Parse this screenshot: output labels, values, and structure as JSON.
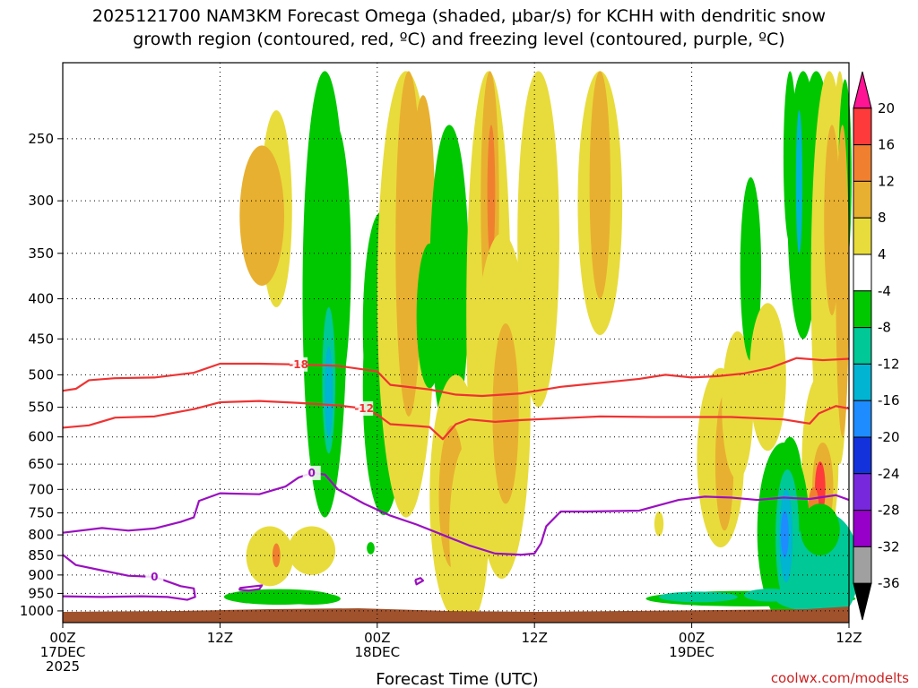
{
  "chart_data": {
    "type": "heatmap",
    "title_line1": "2025121700 NAM3KM Forecast Omega (shaded, μbar/s) for KCHH with dendritic snow",
    "title_line2": "growth region (contoured, red, ºC) and freezing level (contoured, purple, ºC)",
    "xlabel": "Forecast Time (UTC)",
    "credit": "coolwx.com/modelts",
    "x_ticks": [
      {
        "hour": 0,
        "lines": [
          "00Z",
          "17DEC",
          "2025"
        ]
      },
      {
        "hour": 12,
        "lines": [
          "12Z"
        ]
      },
      {
        "hour": 24,
        "lines": [
          "00Z",
          "18DEC"
        ]
      },
      {
        "hour": 36,
        "lines": [
          "12Z"
        ]
      },
      {
        "hour": 48,
        "lines": [
          "00Z",
          "19DEC"
        ]
      },
      {
        "hour": 60,
        "lines": [
          "12Z"
        ]
      }
    ],
    "xlim": [
      0,
      60
    ],
    "y_scale": "log-pressure (hPa), inverted",
    "ylim": [
      1035,
      200
    ],
    "y_ticks": [
      250,
      300,
      350,
      400,
      450,
      500,
      550,
      600,
      650,
      700,
      750,
      800,
      850,
      900,
      950,
      1000
    ],
    "grid": true,
    "colorbar": {
      "labels": [
        "20",
        "16",
        "12",
        "8",
        "4",
        "-4",
        "-8",
        "-12",
        "-16",
        "-20",
        "-24",
        "-28",
        "-32",
        "-36"
      ],
      "colors": [
        "#ff1493",
        "#ff3a3a",
        "#f08030",
        "#e8b030",
        "#e8dc3c",
        "#ffffff",
        "#00c800",
        "#00c896",
        "#00b4d2",
        "#1e8cff",
        "#1432dc",
        "#7828dc",
        "#9600c8",
        "#a0a0a0",
        "#000000"
      ]
    },
    "contours": [
      {
        "label": "-18",
        "color": "#ee3333",
        "points": [
          [
            0,
            524
          ],
          [
            1,
            521
          ],
          [
            2,
            508
          ],
          [
            4,
            505
          ],
          [
            7,
            504
          ],
          [
            10,
            497
          ],
          [
            12,
            484
          ],
          [
            15,
            484
          ],
          [
            18,
            485
          ],
          [
            21,
            487
          ],
          [
            24,
            495
          ],
          [
            25,
            515
          ],
          [
            28,
            522
          ],
          [
            30,
            530
          ],
          [
            32,
            532
          ],
          [
            35,
            528
          ],
          [
            38,
            518
          ],
          [
            42,
            510
          ],
          [
            44,
            506
          ],
          [
            46,
            500
          ],
          [
            48,
            504
          ],
          [
            50,
            502
          ],
          [
            52,
            498
          ],
          [
            54,
            490
          ],
          [
            56,
            476
          ],
          [
            58,
            479
          ],
          [
            60,
            477
          ]
        ]
      },
      {
        "label": "-12",
        "color": "#ee3333",
        "points": [
          [
            0,
            584
          ],
          [
            2,
            580
          ],
          [
            4,
            567
          ],
          [
            7,
            565
          ],
          [
            10,
            553
          ],
          [
            12,
            542
          ],
          [
            15,
            540
          ],
          [
            18,
            543
          ],
          [
            21,
            547
          ],
          [
            23,
            552
          ],
          [
            24,
            562
          ],
          [
            25,
            578
          ],
          [
            27,
            581
          ],
          [
            28,
            583
          ],
          [
            29,
            604
          ],
          [
            30,
            578
          ],
          [
            31,
            570
          ],
          [
            33,
            574
          ],
          [
            35,
            571
          ],
          [
            38,
            568
          ],
          [
            41,
            565
          ],
          [
            45,
            566
          ],
          [
            48,
            566
          ],
          [
            51,
            566
          ],
          [
            53,
            568
          ],
          [
            55,
            570
          ],
          [
            57,
            577
          ],
          [
            57.7,
            560
          ],
          [
            59,
            548
          ],
          [
            60,
            552
          ]
        ]
      },
      {
        "label": "0",
        "color": "#9a10c0",
        "points": [
          [
            0,
            795
          ],
          [
            3,
            784
          ],
          [
            5,
            790
          ],
          [
            7,
            785
          ],
          [
            9,
            770
          ],
          [
            10,
            760
          ],
          [
            10.4,
            724
          ],
          [
            12,
            708
          ],
          [
            15,
            710
          ],
          [
            17,
            694
          ],
          [
            18,
            676
          ],
          [
            19,
            667
          ],
          [
            20,
            670
          ],
          [
            21,
            700
          ],
          [
            23,
            730
          ],
          [
            25,
            756
          ],
          [
            27,
            776
          ],
          [
            29,
            800
          ],
          [
            31,
            825
          ],
          [
            33,
            845
          ],
          [
            35,
            848
          ],
          [
            36,
            845
          ],
          [
            36.5,
            820
          ],
          [
            36.9,
            780
          ],
          [
            38,
            747
          ],
          [
            40,
            747
          ],
          [
            44,
            745
          ],
          [
            47,
            722
          ],
          [
            49,
            715
          ],
          [
            51,
            717
          ],
          [
            53,
            722
          ],
          [
            55,
            717
          ],
          [
            57,
            720
          ],
          [
            59,
            712
          ],
          [
            60,
            722
          ]
        ]
      },
      {
        "label": "0",
        "color": "#9a10c0",
        "points": [
          [
            0,
            848
          ],
          [
            1,
            874
          ],
          [
            3,
            888
          ],
          [
            5,
            902
          ],
          [
            7,
            905
          ],
          [
            9,
            930
          ],
          [
            10,
            936
          ],
          [
            10.1,
            960
          ],
          [
            9.5,
            968
          ],
          [
            8,
            960
          ],
          [
            6,
            958
          ],
          [
            3,
            960
          ],
          [
            0,
            958
          ]
        ]
      },
      {
        "label": "0",
        "color": "#9a10c0",
        "points": [
          [
            13.5,
            935
          ],
          [
            14.7,
            930
          ],
          [
            15.2,
            928
          ],
          [
            15,
            938
          ],
          [
            14.2,
            942
          ],
          [
            13.5,
            940
          ],
          [
            13.5,
            935
          ]
        ]
      },
      {
        "label": "0",
        "color": "#9a10c0",
        "points": [
          [
            26.9,
            913
          ],
          [
            27.3,
            908
          ],
          [
            27.5,
            915
          ],
          [
            27,
            925
          ],
          [
            26.9,
            913
          ]
        ]
      }
    ]
  }
}
